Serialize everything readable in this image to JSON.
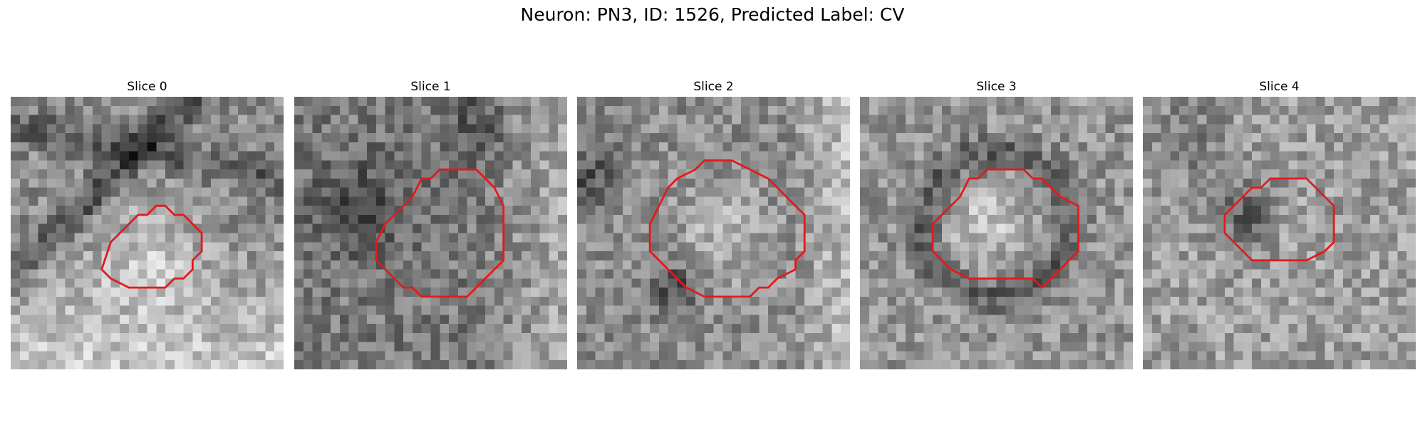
{
  "figure": {
    "title": "Neuron: PN3, ID: 1526, Predicted Label: CV",
    "panels": [
      {
        "title": "Slice 0",
        "seed": 11,
        "outline_color": "#e31a1c"
      },
      {
        "title": "Slice 1",
        "seed": 23,
        "outline_color": "#e31a1c"
      },
      {
        "title": "Slice 2",
        "seed": 37,
        "outline_color": "#e31a1c"
      },
      {
        "title": "Slice 3",
        "seed": 51,
        "outline_color": "#e31a1c"
      },
      {
        "title": "Slice 4",
        "seed": 67,
        "outline_color": "#e31a1c"
      }
    ]
  }
}
